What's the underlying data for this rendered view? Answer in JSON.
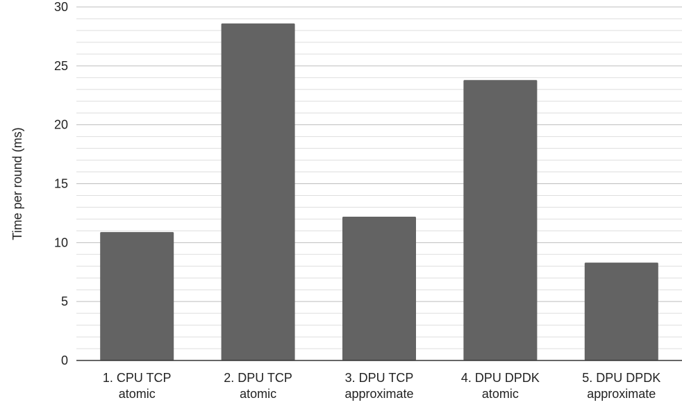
{
  "chart_data": {
    "type": "bar",
    "title": "",
    "xlabel": "",
    "ylabel": "Time per round (ms)",
    "categories": [
      [
        "1. CPU TCP",
        "atomic"
      ],
      [
        "2. DPU TCP",
        "atomic"
      ],
      [
        "3. DPU TCP",
        "approximate"
      ],
      [
        "4. DPU DPDK",
        "atomic"
      ],
      [
        "5. DPU DPDK",
        "approximate"
      ]
    ],
    "values": [
      10.9,
      28.6,
      12.2,
      23.8,
      8.3
    ],
    "ylim": [
      0,
      30
    ],
    "yticks": [
      0,
      5,
      10,
      15,
      20,
      25,
      30
    ],
    "minor_gridlines_per_major": 5,
    "grid": true,
    "legend": "none",
    "bar_color": "#636363",
    "grid_color": "#cccccc",
    "axis_color": "#333333"
  }
}
